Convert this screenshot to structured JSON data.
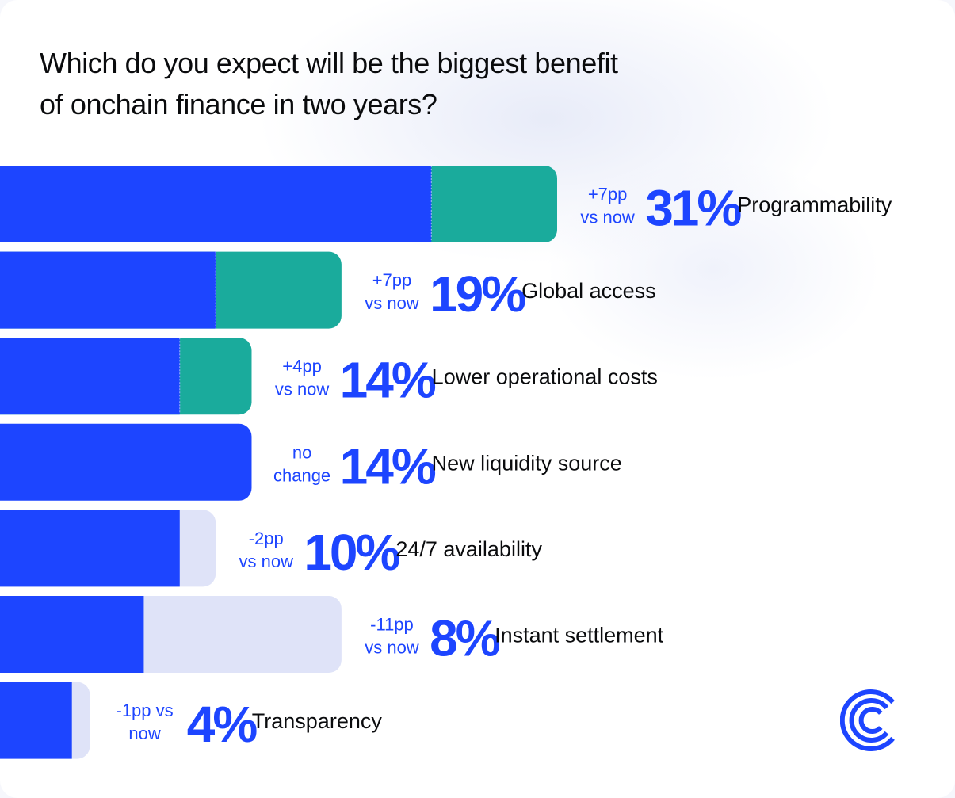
{
  "title_lines": [
    "Which do you expect will be the biggest benefit",
    "of onchain finance in two years?"
  ],
  "colors": {
    "now": "#1d45ff",
    "gain": "#1aab9c",
    "loss": "#dfe3f8",
    "text": "#0a0b0d",
    "accent": "#1d45ff"
  },
  "chart_data": {
    "type": "bar",
    "orientation": "horizontal",
    "stacked": true,
    "categories": [
      "Programmability",
      "Global access",
      "Lower operational costs",
      "New liquidity source",
      "24/7 availability",
      "Instant settlement",
      "Transparency"
    ],
    "values": [
      31,
      19,
      14,
      14,
      10,
      8,
      4
    ],
    "value_labels": [
      "31%",
      "19%",
      "14%",
      "14%",
      "10%",
      "8%",
      "4%"
    ],
    "change_pp": [
      7,
      7,
      4,
      0,
      -2,
      -11,
      -1
    ],
    "now_values": [
      24,
      12,
      10,
      14,
      12,
      19,
      5
    ],
    "change_labels": [
      [
        "+7pp",
        "vs now"
      ],
      [
        "+7pp",
        "vs now"
      ],
      [
        "+4pp",
        "vs now"
      ],
      [
        "no",
        "change"
      ],
      [
        "-2pp",
        "vs now"
      ],
      [
        "-11pp",
        "vs now"
      ],
      [
        "-1pp vs",
        "now"
      ]
    ],
    "xlim": [
      0,
      31
    ],
    "grid": false,
    "legend": "none"
  },
  "logo": {
    "icon": "coinbase-logo-icon"
  }
}
